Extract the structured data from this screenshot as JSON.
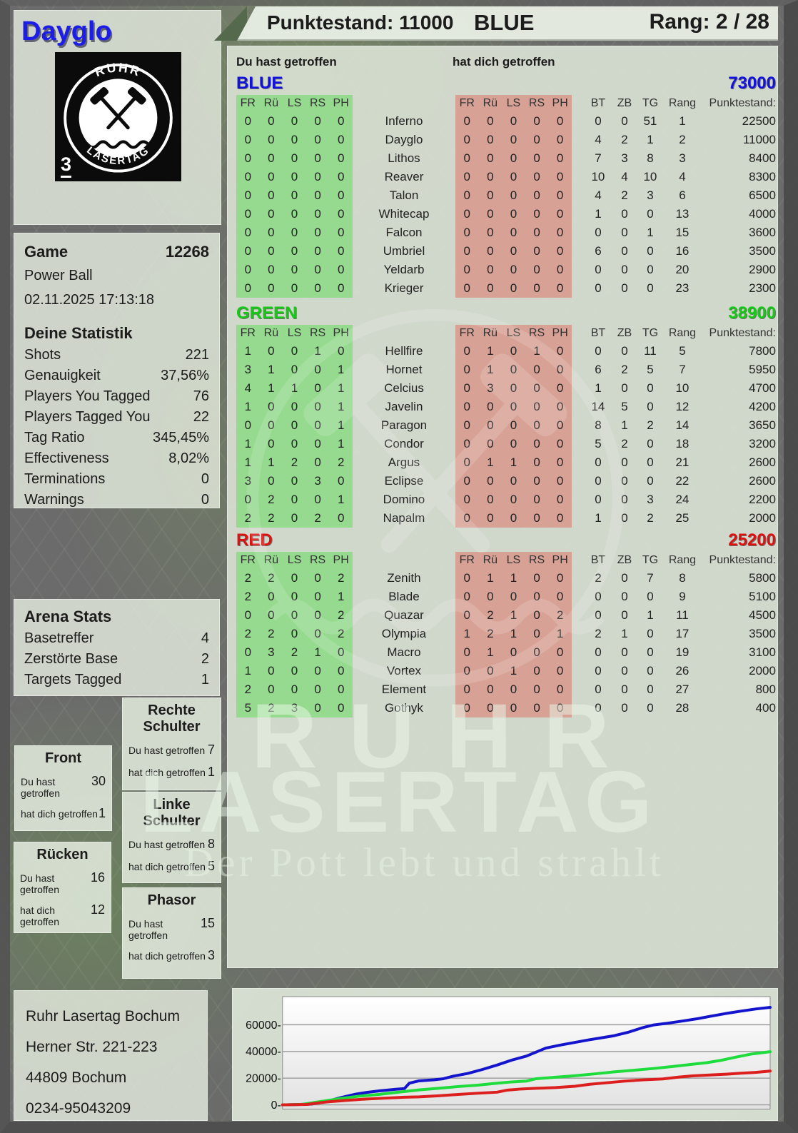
{
  "player": {
    "name": "Dayglo"
  },
  "top_bar": {
    "score": "Punktestand: 11000",
    "team": "BLUE",
    "rank": "Rang: 2 / 28"
  },
  "logo": {
    "arc_top": "RUHR",
    "arc_bottom": "LASERTAG",
    "badge": "3"
  },
  "labels": {
    "you_hit": "Du hast getroffen",
    "hit_you": "hat dich getroffen",
    "hit_columns": [
      "FR",
      "Rü",
      "LS",
      "RS",
      "PH"
    ],
    "stat_columns": [
      "BT",
      "ZB",
      "TG",
      "Rang",
      "Punktestand:"
    ]
  },
  "game_panel": {
    "title": "Game",
    "number": "12268",
    "mode": "Power Ball",
    "datetime": "02.11.2025 17:13:18"
  },
  "stats_panel": {
    "title": "Deine Statistik",
    "rows": [
      {
        "label": "Shots",
        "value": "221"
      },
      {
        "label": "Genauigkeit",
        "value": "37,56%"
      },
      {
        "label": "Players You Tagged",
        "value": "76"
      },
      {
        "label": "Players Tagged You",
        "value": "22"
      },
      {
        "label": "Tag Ratio",
        "value": "345,45%"
      },
      {
        "label": "Effectiveness",
        "value": "8,02%"
      },
      {
        "label": "Terminations",
        "value": "0"
      },
      {
        "label": "Warnings",
        "value": "0"
      }
    ]
  },
  "arena_panel": {
    "title": "Arena Stats",
    "rows": [
      {
        "label": "Basetreffer",
        "value": "4"
      },
      {
        "label": "Zerstörte Base",
        "value": "2"
      },
      {
        "label": "Targets Tagged",
        "value": "1"
      }
    ]
  },
  "body_boxes": [
    {
      "id": "front",
      "title": "Front",
      "you": "30",
      "them": "1"
    },
    {
      "id": "rechte-schulter",
      "title": "Rechte Schulter",
      "you": "7",
      "them": "1"
    },
    {
      "id": "linke-schulter",
      "title": "Linke Schulter",
      "you": "8",
      "them": "5"
    },
    {
      "id": "ruecken",
      "title": "Rücken",
      "you": "16",
      "them": "12"
    },
    {
      "id": "phasor",
      "title": "Phasor",
      "you": "15",
      "them": "3"
    }
  ],
  "teams": [
    {
      "name": "BLUE",
      "color": "#1212dc",
      "total": "73000",
      "players": [
        {
          "name": "Inferno",
          "you": [
            0,
            0,
            0,
            0,
            0
          ],
          "them": [
            0,
            0,
            0,
            0,
            0
          ],
          "bt": 0,
          "zb": 0,
          "tg": 51,
          "rang": 1,
          "score": "22500"
        },
        {
          "name": "Dayglo",
          "you": [
            0,
            0,
            0,
            0,
            0
          ],
          "them": [
            0,
            0,
            0,
            0,
            0
          ],
          "bt": 4,
          "zb": 2,
          "tg": 1,
          "rang": 2,
          "score": "11000"
        },
        {
          "name": "Lithos",
          "you": [
            0,
            0,
            0,
            0,
            0
          ],
          "them": [
            0,
            0,
            0,
            0,
            0
          ],
          "bt": 7,
          "zb": 3,
          "tg": 8,
          "rang": 3,
          "score": "8400"
        },
        {
          "name": "Reaver",
          "you": [
            0,
            0,
            0,
            0,
            0
          ],
          "them": [
            0,
            0,
            0,
            0,
            0
          ],
          "bt": 10,
          "zb": 4,
          "tg": 10,
          "rang": 4,
          "score": "8300"
        },
        {
          "name": "Talon",
          "you": [
            0,
            0,
            0,
            0,
            0
          ],
          "them": [
            0,
            0,
            0,
            0,
            0
          ],
          "bt": 4,
          "zb": 2,
          "tg": 3,
          "rang": 6,
          "score": "6500"
        },
        {
          "name": "Whitecap",
          "you": [
            0,
            0,
            0,
            0,
            0
          ],
          "them": [
            0,
            0,
            0,
            0,
            0
          ],
          "bt": 1,
          "zb": 0,
          "tg": 0,
          "rang": 13,
          "score": "4000"
        },
        {
          "name": "Falcon",
          "you": [
            0,
            0,
            0,
            0,
            0
          ],
          "them": [
            0,
            0,
            0,
            0,
            0
          ],
          "bt": 0,
          "zb": 0,
          "tg": 1,
          "rang": 15,
          "score": "3600"
        },
        {
          "name": "Umbriel",
          "you": [
            0,
            0,
            0,
            0,
            0
          ],
          "them": [
            0,
            0,
            0,
            0,
            0
          ],
          "bt": 6,
          "zb": 0,
          "tg": 0,
          "rang": 16,
          "score": "3500"
        },
        {
          "name": "Yeldarb",
          "you": [
            0,
            0,
            0,
            0,
            0
          ],
          "them": [
            0,
            0,
            0,
            0,
            0
          ],
          "bt": 0,
          "zb": 0,
          "tg": 0,
          "rang": 20,
          "score": "2900"
        },
        {
          "name": "Krieger",
          "you": [
            0,
            0,
            0,
            0,
            0
          ],
          "them": [
            0,
            0,
            0,
            0,
            0
          ],
          "bt": 0,
          "zb": 0,
          "tg": 0,
          "rang": 23,
          "score": "2300"
        }
      ]
    },
    {
      "name": "GREEN",
      "color": "#16c916",
      "total": "38900",
      "players": [
        {
          "name": "Hellfire",
          "you": [
            1,
            0,
            0,
            1,
            0
          ],
          "them": [
            0,
            1,
            0,
            1,
            0
          ],
          "bt": 0,
          "zb": 0,
          "tg": 11,
          "rang": 5,
          "score": "7800"
        },
        {
          "name": "Hornet",
          "you": [
            3,
            1,
            0,
            0,
            1
          ],
          "them": [
            0,
            1,
            0,
            0,
            0
          ],
          "bt": 6,
          "zb": 2,
          "tg": 5,
          "rang": 7,
          "score": "5950"
        },
        {
          "name": "Celcius",
          "you": [
            4,
            1,
            1,
            0,
            1
          ],
          "them": [
            0,
            3,
            0,
            0,
            0
          ],
          "bt": 1,
          "zb": 0,
          "tg": 0,
          "rang": 10,
          "score": "4700"
        },
        {
          "name": "Javelin",
          "you": [
            1,
            0,
            0,
            0,
            1
          ],
          "them": [
            0,
            0,
            0,
            0,
            0
          ],
          "bt": 14,
          "zb": 5,
          "tg": 0,
          "rang": 12,
          "score": "4200"
        },
        {
          "name": "Paragon",
          "you": [
            0,
            0,
            0,
            0,
            1
          ],
          "them": [
            0,
            0,
            0,
            0,
            0
          ],
          "bt": 8,
          "zb": 1,
          "tg": 2,
          "rang": 14,
          "score": "3650"
        },
        {
          "name": "Condor",
          "you": [
            1,
            0,
            0,
            0,
            1
          ],
          "them": [
            0,
            0,
            0,
            0,
            0
          ],
          "bt": 5,
          "zb": 2,
          "tg": 0,
          "rang": 18,
          "score": "3200"
        },
        {
          "name": "Argus",
          "you": [
            1,
            1,
            2,
            0,
            2
          ],
          "them": [
            0,
            1,
            1,
            0,
            0
          ],
          "bt": 0,
          "zb": 0,
          "tg": 0,
          "rang": 21,
          "score": "2600"
        },
        {
          "name": "Eclipse",
          "you": [
            3,
            0,
            0,
            3,
            0
          ],
          "them": [
            0,
            0,
            0,
            0,
            0
          ],
          "bt": 0,
          "zb": 0,
          "tg": 0,
          "rang": 22,
          "score": "2600"
        },
        {
          "name": "Domino",
          "you": [
            0,
            2,
            0,
            0,
            1
          ],
          "them": [
            0,
            0,
            0,
            0,
            0
          ],
          "bt": 0,
          "zb": 0,
          "tg": 3,
          "rang": 24,
          "score": "2200"
        },
        {
          "name": "Napalm",
          "you": [
            2,
            2,
            0,
            2,
            0
          ],
          "them": [
            0,
            0,
            0,
            0,
            0
          ],
          "bt": 1,
          "zb": 0,
          "tg": 2,
          "rang": 25,
          "score": "2000"
        }
      ]
    },
    {
      "name": "RED",
      "color": "#dc1212",
      "total": "25200",
      "players": [
        {
          "name": "Zenith",
          "you": [
            2,
            2,
            0,
            0,
            2
          ],
          "them": [
            0,
            1,
            1,
            0,
            0
          ],
          "bt": 2,
          "zb": 0,
          "tg": 7,
          "rang": 8,
          "score": "5800"
        },
        {
          "name": "Blade",
          "you": [
            2,
            0,
            0,
            0,
            1
          ],
          "them": [
            0,
            0,
            0,
            0,
            0
          ],
          "bt": 0,
          "zb": 0,
          "tg": 0,
          "rang": 9,
          "score": "5100"
        },
        {
          "name": "Quazar",
          "you": [
            0,
            0,
            0,
            0,
            2
          ],
          "them": [
            0,
            2,
            1,
            0,
            2
          ],
          "bt": 0,
          "zb": 0,
          "tg": 1,
          "rang": 11,
          "score": "4500"
        },
        {
          "name": "Olympia",
          "you": [
            2,
            2,
            0,
            0,
            2
          ],
          "them": [
            1,
            2,
            1,
            0,
            1
          ],
          "bt": 2,
          "zb": 1,
          "tg": 0,
          "rang": 17,
          "score": "3500"
        },
        {
          "name": "Macro",
          "you": [
            0,
            3,
            2,
            1,
            0
          ],
          "them": [
            0,
            1,
            0,
            0,
            0
          ],
          "bt": 0,
          "zb": 0,
          "tg": 0,
          "rang": 19,
          "score": "3100"
        },
        {
          "name": "Vortex",
          "you": [
            1,
            0,
            0,
            0,
            0
          ],
          "them": [
            0,
            0,
            1,
            0,
            0
          ],
          "bt": 0,
          "zb": 0,
          "tg": 0,
          "rang": 26,
          "score": "2000"
        },
        {
          "name": "Element",
          "you": [
            2,
            0,
            0,
            0,
            0
          ],
          "them": [
            0,
            0,
            0,
            0,
            0
          ],
          "bt": 0,
          "zb": 0,
          "tg": 0,
          "rang": 27,
          "score": "800"
        },
        {
          "name": "Gothyk",
          "you": [
            5,
            2,
            3,
            0,
            0
          ],
          "them": [
            0,
            0,
            0,
            0,
            0
          ],
          "bt": 0,
          "zb": 0,
          "tg": 0,
          "rang": 28,
          "score": "400"
        }
      ]
    }
  ],
  "watermark": {
    "line1": "RUHR",
    "line2": "LASERTAG",
    "tagline": "Der Pott lebt und strahlt"
  },
  "address": {
    "lines": [
      "Ruhr Lasertag Bochum",
      "Herner Str. 221-223",
      "44809 Bochum",
      "0234-95043209"
    ]
  },
  "chart_data": {
    "type": "line",
    "title": "",
    "xlabel": "",
    "ylabel": "",
    "ylim": [
      0,
      80000
    ],
    "yticks": [
      0,
      20000,
      40000,
      60000
    ],
    "ytick_labels": [
      "0-",
      "20000-",
      "40000-",
      "60000-"
    ],
    "grid": true,
    "legend_position": "none",
    "series": [
      {
        "name": "BLUE",
        "color": "#1414cc",
        "points": [
          [
            0,
            0
          ],
          [
            3,
            200
          ],
          [
            6,
            600
          ],
          [
            9,
            2500
          ],
          [
            12,
            5500
          ],
          [
            15,
            8000
          ],
          [
            17,
            9200
          ],
          [
            20,
            10500
          ],
          [
            23,
            11600
          ],
          [
            25,
            12200
          ],
          [
            26,
            16200
          ],
          [
            28,
            18000
          ],
          [
            31,
            18800
          ],
          [
            33,
            19600
          ],
          [
            35,
            21500
          ],
          [
            38,
            23500
          ],
          [
            41,
            26500
          ],
          [
            44,
            29800
          ],
          [
            47,
            33500
          ],
          [
            50,
            36500
          ],
          [
            52,
            39500
          ],
          [
            54,
            42500
          ],
          [
            57,
            44800
          ],
          [
            60,
            46800
          ],
          [
            63,
            48800
          ],
          [
            65,
            50000
          ],
          [
            68,
            51800
          ],
          [
            71,
            54500
          ],
          [
            74,
            58000
          ],
          [
            76,
            59800
          ],
          [
            79,
            61200
          ],
          [
            82,
            62800
          ],
          [
            85,
            64500
          ],
          [
            88,
            66500
          ],
          [
            91,
            68500
          ],
          [
            94,
            70200
          ],
          [
            97,
            71800
          ],
          [
            100,
            73000
          ]
        ]
      },
      {
        "name": "GREEN",
        "color": "#1edc3c",
        "points": [
          [
            0,
            0
          ],
          [
            4,
            400
          ],
          [
            8,
            2600
          ],
          [
            12,
            4800
          ],
          [
            16,
            6600
          ],
          [
            20,
            7900
          ],
          [
            24,
            9600
          ],
          [
            28,
            11200
          ],
          [
            32,
            12400
          ],
          [
            36,
            13700
          ],
          [
            40,
            14700
          ],
          [
            44,
            16200
          ],
          [
            47,
            17200
          ],
          [
            50,
            17800
          ],
          [
            52,
            19600
          ],
          [
            56,
            20700
          ],
          [
            60,
            21800
          ],
          [
            64,
            23200
          ],
          [
            68,
            24700
          ],
          [
            72,
            25900
          ],
          [
            76,
            27200
          ],
          [
            80,
            28700
          ],
          [
            84,
            30400
          ],
          [
            87,
            31600
          ],
          [
            90,
            33400
          ],
          [
            93,
            35800
          ],
          [
            96,
            38000
          ],
          [
            100,
            39800
          ]
        ]
      },
      {
        "name": "RED",
        "color": "#dc1e1e",
        "points": [
          [
            0,
            0
          ],
          [
            5,
            300
          ],
          [
            9,
            2200
          ],
          [
            13,
            3300
          ],
          [
            17,
            4300
          ],
          [
            21,
            5000
          ],
          [
            25,
            5700
          ],
          [
            28,
            6000
          ],
          [
            32,
            6800
          ],
          [
            36,
            7800
          ],
          [
            40,
            8700
          ],
          [
            44,
            9500
          ],
          [
            46,
            11000
          ],
          [
            49,
            11900
          ],
          [
            52,
            12400
          ],
          [
            56,
            12900
          ],
          [
            60,
            13900
          ],
          [
            63,
            15400
          ],
          [
            66,
            16400
          ],
          [
            70,
            17700
          ],
          [
            74,
            18700
          ],
          [
            78,
            19400
          ],
          [
            81,
            20700
          ],
          [
            84,
            21700
          ],
          [
            88,
            22400
          ],
          [
            91,
            23000
          ],
          [
            94,
            23700
          ],
          [
            97,
            24300
          ],
          [
            100,
            25300
          ]
        ]
      }
    ]
  }
}
